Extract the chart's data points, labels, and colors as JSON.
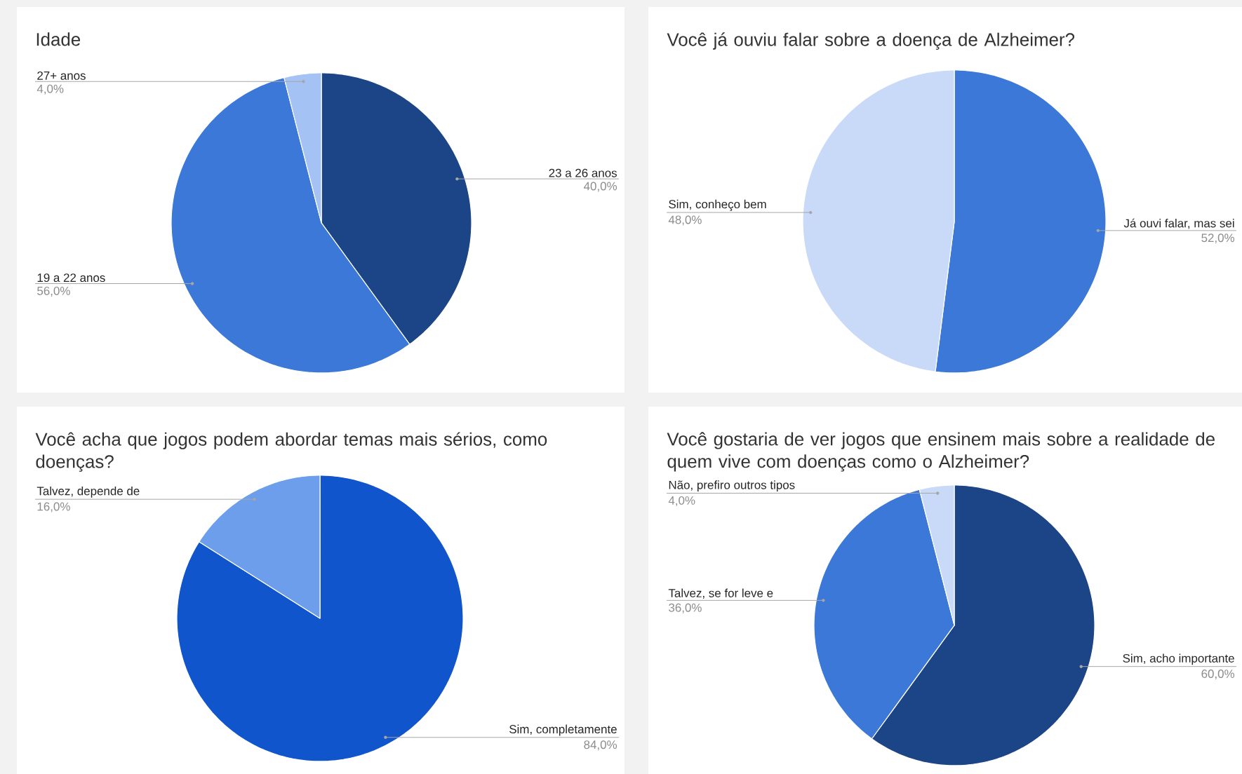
{
  "chart_data": [
    {
      "type": "pie",
      "title": "Idade",
      "categories": [
        "23 a 26 anos",
        "19 a 22 anos",
        "27+ anos"
      ],
      "values": [
        40,
        56,
        4
      ],
      "colors": [
        "#1c4587",
        "#3c78d8",
        "#a4c2f4"
      ],
      "value_labels": [
        "40,0%",
        "56,0%",
        "4,0%"
      ]
    },
    {
      "type": "pie",
      "title": "Você já ouviu falar sobre a doença de Alzheimer?",
      "categories": [
        "Já ouvi falar, mas sei",
        "Sim, conheço bem"
      ],
      "values": [
        52,
        48
      ],
      "colors": [
        "#3c78d8",
        "#c9daf8"
      ],
      "value_labels": [
        "52,0%",
        "48,0%"
      ]
    },
    {
      "type": "pie",
      "title": "Você acha que jogos podem abordar temas mais sérios, como doenças?",
      "categories": [
        "Sim, completamente",
        "Talvez, depende de"
      ],
      "values": [
        84,
        16
      ],
      "colors": [
        "#1155cc",
        "#6d9eeb"
      ],
      "value_labels": [
        "84,0%",
        "16,0%"
      ]
    },
    {
      "type": "pie",
      "title": "Você gostaria de ver jogos que ensinem mais sobre a realidade de quem vive com doenças como o Alzheimer?",
      "categories": [
        "Sim, acho importante",
        "Talvez, se for leve e",
        "Não, prefiro outros tipos"
      ],
      "values": [
        60,
        36,
        4
      ],
      "colors": [
        "#1c4587",
        "#3c78d8",
        "#c9daf8"
      ],
      "value_labels": [
        "60,0%",
        "36,0%",
        "4,0%"
      ]
    }
  ]
}
